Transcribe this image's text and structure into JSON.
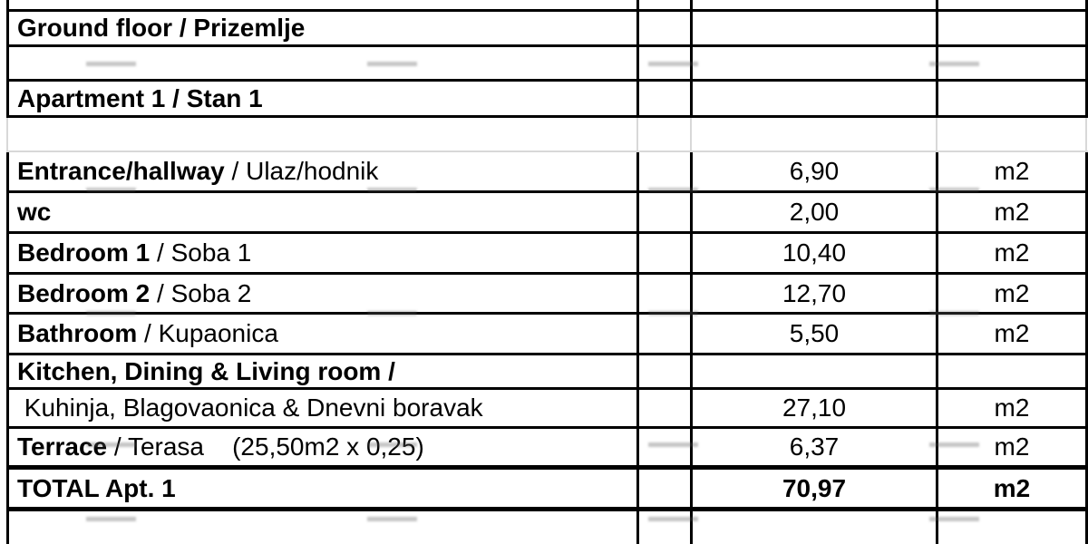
{
  "document": {
    "kind": "floor-area-table",
    "unit_label": "m2",
    "accent_colors": {
      "border_black": "#000000",
      "grid_gray": "#d8d8d8",
      "background": "#ffffff"
    },
    "rows": [
      {
        "kind": "sliver"
      },
      {
        "kind": "section",
        "label": "Ground floor / Prizemlje"
      },
      {
        "kind": "empty"
      },
      {
        "kind": "section",
        "label": "Apartment 1 / Stan 1"
      },
      {
        "kind": "spacer"
      },
      {
        "kind": "item",
        "bold": "Entrance/hallway",
        "rest": " / Ulaz/hodnik",
        "value": "6,90",
        "unit": "m2"
      },
      {
        "kind": "item",
        "bold": "wc",
        "rest": "",
        "value": "2,00",
        "unit": "m2"
      },
      {
        "kind": "item",
        "bold": "Bedroom 1",
        "rest": " / Soba 1",
        "value": "10,40",
        "unit": "m2"
      },
      {
        "kind": "item",
        "bold": "Bedroom 2",
        "rest": " / Soba 2",
        "value": "12,70",
        "unit": "m2"
      },
      {
        "kind": "item",
        "bold": "Bathroom",
        "rest": " / Kupaonica",
        "value": "5,50",
        "unit": "m2"
      },
      {
        "kind": "item",
        "bold": "Kitchen, Dining & Living room /",
        "rest": "",
        "value": "",
        "unit": ""
      },
      {
        "kind": "item",
        "bold": "",
        "rest": " Kuhinja, Blagovaonica & Dnevni boravak",
        "value": "27,10",
        "unit": "m2"
      },
      {
        "kind": "item",
        "bold": "Terrace",
        "rest": " / Terasa    (25,50m2 x 0,25)",
        "value": "6,37",
        "unit": "m2"
      },
      {
        "kind": "total",
        "bold": "TOTAL Apt. 1",
        "rest": "",
        "value": "70,97",
        "unit": "m2"
      },
      {
        "kind": "bottom"
      }
    ]
  }
}
